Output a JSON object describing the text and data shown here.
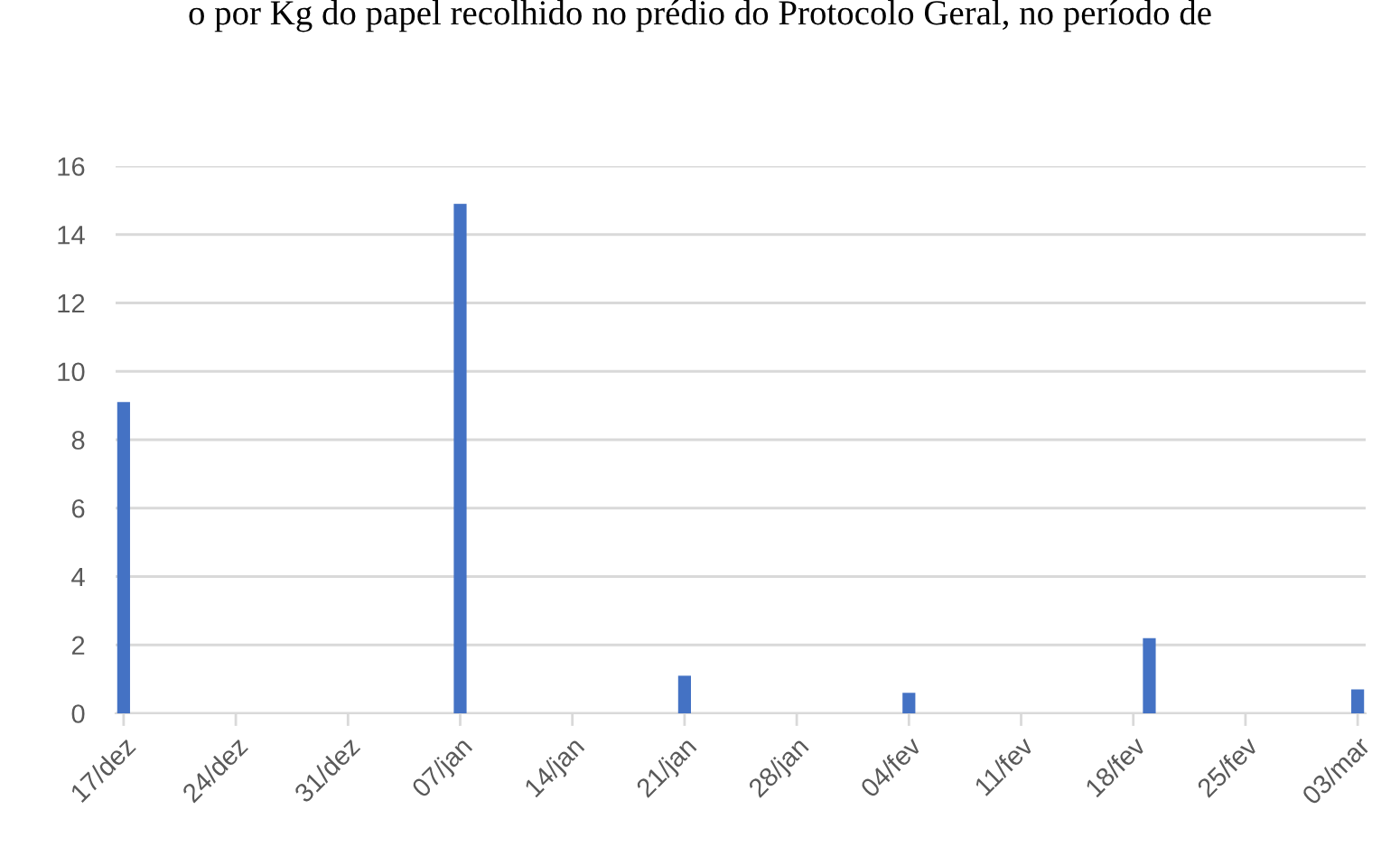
{
  "chart_data": {
    "type": "bar",
    "title": "o por Kg do papel recolhido no prédio do Protocolo Geral, no período de",
    "categories": [
      "17/dez",
      null,
      null,
      null,
      null,
      null,
      null,
      "24/dez",
      null,
      null,
      null,
      null,
      null,
      null,
      "31/dez",
      null,
      null,
      null,
      null,
      null,
      null,
      "07/jan",
      null,
      null,
      null,
      null,
      null,
      null,
      "14/jan",
      null,
      null,
      null,
      null,
      null,
      null,
      "21/jan",
      null,
      null,
      null,
      null,
      null,
      null,
      "28/jan",
      null,
      null,
      null,
      null,
      null,
      null,
      "04/fev",
      null,
      null,
      null,
      null,
      null,
      null,
      "11/fev",
      null,
      null,
      null,
      null,
      null,
      null,
      "18/fev",
      null,
      null,
      null,
      null,
      null,
      null,
      "25/fev",
      null,
      null,
      null,
      null,
      null,
      null,
      "03/mar"
    ],
    "values": [
      9.1,
      null,
      null,
      null,
      null,
      null,
      null,
      null,
      null,
      null,
      null,
      null,
      null,
      null,
      null,
      null,
      null,
      null,
      null,
      null,
      null,
      14.9,
      null,
      null,
      null,
      null,
      null,
      null,
      null,
      null,
      null,
      null,
      null,
      null,
      null,
      1.1,
      null,
      null,
      null,
      null,
      null,
      null,
      null,
      null,
      null,
      null,
      null,
      null,
      null,
      0.6,
      null,
      null,
      null,
      null,
      null,
      null,
      null,
      null,
      null,
      null,
      null,
      null,
      null,
      null,
      2.2,
      null,
      null,
      null,
      null,
      null,
      null,
      null,
      null,
      null,
      null,
      null,
      null,
      0.7
    ],
    "color": "#4472c4",
    "ylim": [
      0,
      16
    ],
    "yticks": [
      0,
      2,
      4,
      6,
      8,
      10,
      12,
      14,
      16
    ],
    "grid": "y"
  }
}
